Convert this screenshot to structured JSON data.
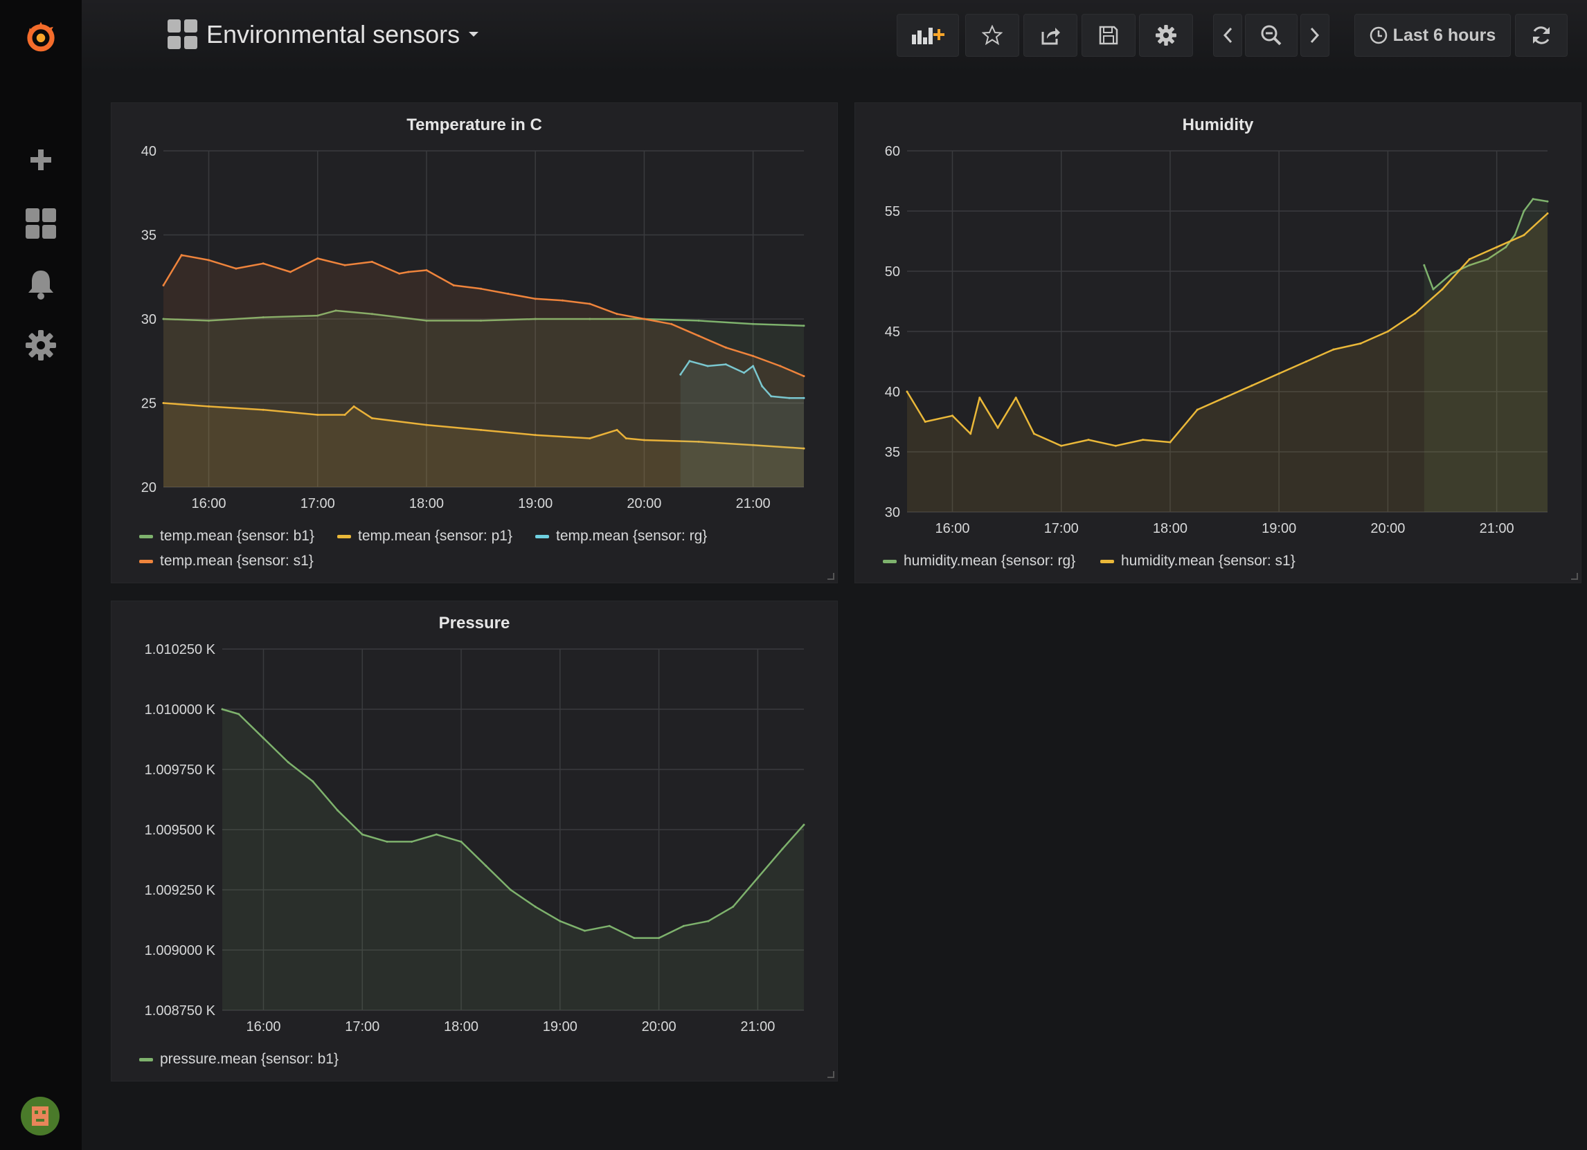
{
  "dashboard": {
    "title": "Environmental sensors",
    "time_range_label": "Last 6 hours"
  },
  "icons": {
    "logo": "grafana-logo-icon",
    "sidebar": [
      "plus-icon",
      "dashboards-grid-icon",
      "bell-icon",
      "gear-icon"
    ],
    "toolbar": [
      "add-panel-icon",
      "star-icon",
      "share-icon",
      "save-icon",
      "gear-icon",
      "chevron-left-icon",
      "zoom-out-icon",
      "chevron-right-icon",
      "clock-icon",
      "refresh-icon"
    ]
  },
  "colors": {
    "green": "#7eb26d",
    "yellow": "#eab839",
    "cyan": "#6ed0e0",
    "orange": "#ef843c"
  },
  "panels": {
    "temperature": {
      "title": "Temperature in C",
      "legend": [
        "temp.mean {sensor: b1}",
        "temp.mean {sensor: p1}",
        "temp.mean {sensor: rg}",
        "temp.mean {sensor: s1}"
      ]
    },
    "humidity": {
      "title": "Humidity",
      "legend": [
        "humidity.mean {sensor: rg}",
        "humidity.mean {sensor: s1}"
      ]
    },
    "pressure": {
      "title": "Pressure",
      "legend": [
        "pressure.mean {sensor: b1}"
      ]
    }
  },
  "chart_data": [
    {
      "type": "line",
      "title": "Temperature in C",
      "xlabel": "",
      "ylabel": "",
      "x_ticks": [
        "16:00",
        "17:00",
        "18:00",
        "19:00",
        "20:00",
        "21:00"
      ],
      "y_ticks": [
        "20",
        "25",
        "30",
        "35",
        "40"
      ],
      "xlim": [
        "15:35",
        "21:28"
      ],
      "ylim": [
        20,
        40
      ],
      "grid": true,
      "legend_position": "bottom",
      "series": [
        {
          "name": "temp.mean {sensor: b1}",
          "color": "#7eb26d",
          "x": [
            "15:35",
            "16:00",
            "16:30",
            "17:00",
            "17:10",
            "17:30",
            "18:00",
            "18:30",
            "19:00",
            "19:30",
            "20:00",
            "20:30",
            "21:00",
            "21:28"
          ],
          "values": [
            30.0,
            29.9,
            30.1,
            30.2,
            30.5,
            30.3,
            29.9,
            29.9,
            30.0,
            30.0,
            30.0,
            29.9,
            29.7,
            29.6
          ]
        },
        {
          "name": "temp.mean {sensor: p1}",
          "color": "#eab839",
          "x": [
            "15:35",
            "16:00",
            "16:30",
            "17:00",
            "17:15",
            "17:20",
            "17:30",
            "18:00",
            "18:30",
            "19:00",
            "19:30",
            "19:45",
            "19:50",
            "20:00",
            "20:30",
            "21:00",
            "21:28"
          ],
          "values": [
            25.0,
            24.8,
            24.6,
            24.3,
            24.3,
            24.8,
            24.1,
            23.7,
            23.4,
            23.1,
            22.9,
            23.4,
            22.9,
            22.8,
            22.7,
            22.5,
            22.3
          ]
        },
        {
          "name": "temp.mean {sensor: rg}",
          "color": "#6ed0e0",
          "x": [
            "20:20",
            "20:25",
            "20:35",
            "20:45",
            "20:55",
            "21:00",
            "21:05",
            "21:10",
            "21:20",
            "21:28"
          ],
          "values": [
            26.7,
            27.5,
            27.2,
            27.3,
            26.8,
            27.2,
            26.0,
            25.4,
            25.3,
            25.3
          ]
        },
        {
          "name": "temp.mean {sensor: s1}",
          "color": "#ef843c",
          "x": [
            "15:35",
            "15:45",
            "16:00",
            "16:15",
            "16:30",
            "16:45",
            "17:00",
            "17:15",
            "17:30",
            "17:45",
            "17:50",
            "18:00",
            "18:15",
            "18:30",
            "18:45",
            "19:00",
            "19:15",
            "19:30",
            "19:45",
            "20:00",
            "20:15",
            "20:30",
            "20:45",
            "21:00",
            "21:15",
            "21:28"
          ],
          "values": [
            32.0,
            33.8,
            33.5,
            33.0,
            33.3,
            32.8,
            33.6,
            33.2,
            33.4,
            32.7,
            32.8,
            32.9,
            32.0,
            31.8,
            31.5,
            31.2,
            31.1,
            30.9,
            30.3,
            30.0,
            29.7,
            29.0,
            28.3,
            27.8,
            27.2,
            26.6
          ]
        }
      ]
    },
    {
      "type": "line",
      "title": "Humidity",
      "xlabel": "",
      "ylabel": "",
      "x_ticks": [
        "16:00",
        "17:00",
        "18:00",
        "19:00",
        "20:00",
        "21:00"
      ],
      "y_ticks": [
        "30",
        "35",
        "40",
        "45",
        "50",
        "55",
        "60"
      ],
      "xlim": [
        "15:35",
        "21:28"
      ],
      "ylim": [
        30,
        60
      ],
      "grid": true,
      "legend_position": "bottom",
      "series": [
        {
          "name": "humidity.mean {sensor: rg}",
          "color": "#7eb26d",
          "x": [
            "20:20",
            "20:25",
            "20:35",
            "20:45",
            "20:55",
            "21:05",
            "21:10",
            "21:15",
            "21:20",
            "21:28"
          ],
          "values": [
            50.5,
            48.5,
            49.8,
            50.5,
            51.0,
            52.0,
            53.0,
            55.0,
            56.0,
            55.8
          ]
        },
        {
          "name": "humidity.mean {sensor: s1}",
          "color": "#eab839",
          "x": [
            "15:35",
            "15:45",
            "16:00",
            "16:10",
            "16:15",
            "16:25",
            "16:35",
            "16:45",
            "17:00",
            "17:15",
            "17:30",
            "17:45",
            "18:00",
            "18:15",
            "18:30",
            "18:45",
            "19:00",
            "19:15",
            "19:30",
            "19:45",
            "20:00",
            "20:15",
            "20:30",
            "20:45",
            "21:00",
            "21:15",
            "21:28"
          ],
          "values": [
            40.0,
            37.5,
            38.0,
            36.5,
            39.5,
            37.0,
            39.5,
            36.5,
            35.5,
            36.0,
            35.5,
            36.0,
            35.8,
            38.5,
            39.5,
            40.5,
            41.5,
            42.5,
            43.5,
            44.0,
            45.0,
            46.5,
            48.5,
            51.0,
            52.0,
            53.0,
            54.8
          ]
        }
      ]
    },
    {
      "type": "line",
      "title": "Pressure",
      "xlabel": "",
      "ylabel": "",
      "x_ticks": [
        "16:00",
        "17:00",
        "18:00",
        "19:00",
        "20:00",
        "21:00"
      ],
      "y_ticks": [
        "1.008750 K",
        "1.009000 K",
        "1.009250 K",
        "1.009500 K",
        "1.009750 K",
        "1.010000 K",
        "1.010250 K"
      ],
      "xlim": [
        "15:35",
        "21:28"
      ],
      "ylim": [
        1008.75,
        1010.25
      ],
      "grid": true,
      "legend_position": "bottom",
      "series": [
        {
          "name": "pressure.mean {sensor: b1}",
          "color": "#7eb26d",
          "x": [
            "15:35",
            "15:45",
            "16:00",
            "16:15",
            "16:30",
            "16:45",
            "17:00",
            "17:15",
            "17:30",
            "17:45",
            "18:00",
            "18:15",
            "18:30",
            "18:45",
            "19:00",
            "19:15",
            "19:30",
            "19:45",
            "20:00",
            "20:15",
            "20:30",
            "20:45",
            "21:00",
            "21:15",
            "21:28"
          ],
          "values": [
            1010.0,
            1009.98,
            1009.88,
            1009.78,
            1009.7,
            1009.58,
            1009.48,
            1009.45,
            1009.45,
            1009.48,
            1009.45,
            1009.35,
            1009.25,
            1009.18,
            1009.12,
            1009.08,
            1009.1,
            1009.05,
            1009.05,
            1009.1,
            1009.12,
            1009.18,
            1009.3,
            1009.42,
            1009.52
          ]
        }
      ]
    }
  ]
}
